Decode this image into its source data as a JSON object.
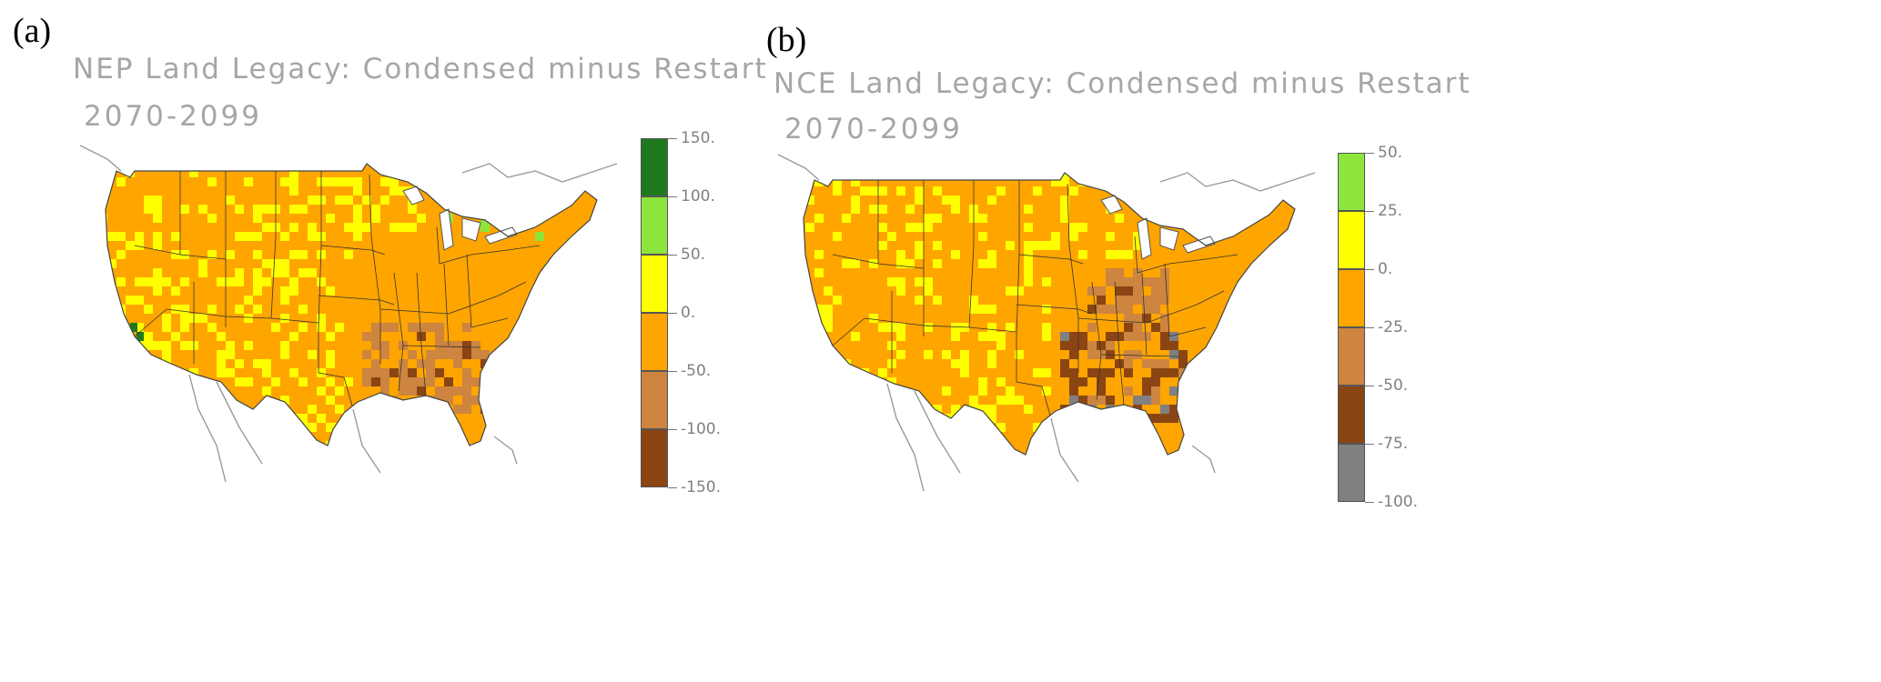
{
  "panels": [
    {
      "label": "(a)",
      "title": "NEP Land Legacy: Condensed minus Restart",
      "period": "2070-2099",
      "colorbar": {
        "labels": [
          "150.",
          "100.",
          "50.",
          "0.",
          "-50.",
          "-100.",
          "-150."
        ],
        "colors": [
          "#1f7a1f",
          "#8ee63c",
          "#ffff00",
          "#ffa500",
          "#cd853f",
          "#8b4513"
        ]
      }
    },
    {
      "label": "(b)",
      "title": "NCE Land Legacy: Condensed minus Restart",
      "period": "2070-2099",
      "colorbar": {
        "labels": [
          "50.",
          "25.",
          "0.",
          "-25.",
          "-50.",
          "-75.",
          "-100."
        ],
        "colors": [
          "#8ee63c",
          "#ffff00",
          "#ffa500",
          "#cd853f",
          "#8b4513",
          "#808080"
        ]
      }
    }
  ]
}
